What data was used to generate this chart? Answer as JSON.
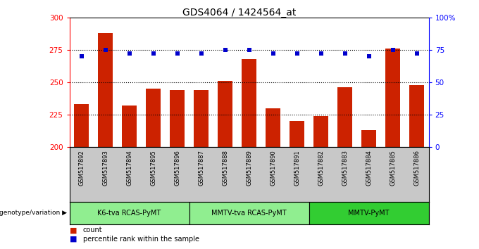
{
  "title": "GDS4064 / 1424564_at",
  "samples": [
    "GSM517892",
    "GSM517893",
    "GSM517894",
    "GSM517895",
    "GSM517896",
    "GSM517887",
    "GSM517888",
    "GSM517889",
    "GSM517890",
    "GSM517891",
    "GSM517882",
    "GSM517883",
    "GSM517884",
    "GSM517885",
    "GSM517886"
  ],
  "counts": [
    233,
    288,
    232,
    245,
    244,
    244,
    251,
    268,
    230,
    220,
    224,
    246,
    213,
    276,
    248
  ],
  "percentile_ranks": [
    70,
    75,
    72,
    72,
    72,
    72,
    75,
    75,
    72,
    72,
    72,
    72,
    70,
    75,
    72
  ],
  "ylim_left": [
    200,
    300
  ],
  "ylim_right": [
    0,
    100
  ],
  "yticks_left": [
    200,
    225,
    250,
    275,
    300
  ],
  "yticks_right": [
    0,
    25,
    50,
    75,
    100
  ],
  "groups": [
    {
      "label": "K6-tva RCAS-PyMT",
      "start": 0,
      "end": 5
    },
    {
      "label": "MMTV-tva RCAS-PyMT",
      "start": 5,
      "end": 10
    },
    {
      "label": "MMTV-PyMT",
      "start": 10,
      "end": 15
    }
  ],
  "group_colors": [
    "#90EE90",
    "#90EE90",
    "#32CD32"
  ],
  "bar_color": "#CC2200",
  "dot_color": "#0000CC",
  "tick_area_color": "#C8C8C8",
  "legend_count_color": "#CC2200",
  "legend_pct_color": "#0000CC",
  "pct_grid_lines": [
    25,
    50,
    75
  ],
  "genotype_label": "genotype/variation"
}
